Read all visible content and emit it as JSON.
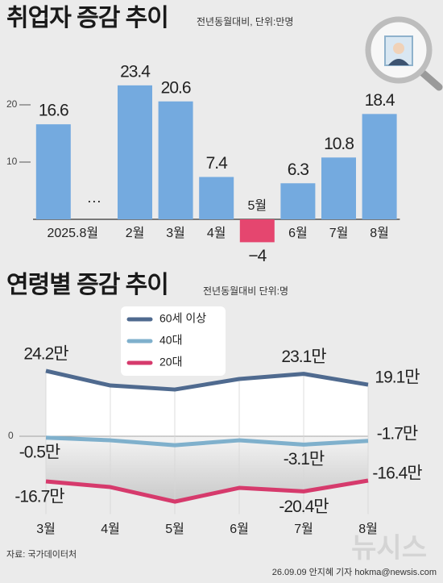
{
  "chart_data": [
    {
      "type": "bar",
      "title": "취업자 증감 추이",
      "subtitle": "전년동월대비, 단위:만명",
      "categories": [
        "2025.8월",
        null,
        "2월",
        "3월",
        "4월",
        "5월",
        "6월",
        "7월",
        "8월"
      ],
      "values": [
        16.6,
        null,
        23.4,
        20.6,
        7.4,
        -4,
        6.3,
        10.8,
        18.4
      ],
      "value_labels": [
        "16.6",
        null,
        "23.4",
        "20.6",
        "7.4",
        "−4",
        "6.3",
        "10.8",
        "18.4"
      ],
      "gap_marker": "···",
      "color": "#74aadf",
      "negative_color": "#e5466f",
      "ylim": [
        -5,
        30
      ],
      "yticks": [
        10,
        20
      ]
    },
    {
      "type": "line",
      "title": "연령별 증감 추이",
      "subtitle": "전년동월대비 단위:명",
      "categories": [
        "3월",
        "4월",
        "5월",
        "6월",
        "7월",
        "8월"
      ],
      "series": [
        {
          "name": "60세 이상",
          "color": "#4f6a8f",
          "values": [
            24.2,
            18.8,
            17.3,
            21.2,
            23.1,
            19.1
          ],
          "value_labels": [
            "24.2만",
            null,
            null,
            null,
            "23.1만",
            "19.1만"
          ]
        },
        {
          "name": "40대",
          "color": "#7fb0cc",
          "values": [
            -0.5,
            -1.5,
            -3.3,
            -1.5,
            -3.1,
            -1.7
          ],
          "value_labels": [
            "-0.5만",
            null,
            null,
            null,
            "-3.1만",
            "-1.7만"
          ]
        },
        {
          "name": "20대",
          "color": "#d63a6c",
          "values": [
            -16.7,
            -18.8,
            -24.2,
            -19.1,
            -20.4,
            -16.4
          ],
          "value_labels": [
            "-16.7만",
            null,
            null,
            null,
            "-20.4만",
            "-16.4만"
          ]
        }
      ],
      "ylim": [
        -27,
        42
      ],
      "yticks": [
        0
      ],
      "legend": "top-left"
    }
  ],
  "source": "자료: 국가데이터처",
  "credit": "26.09.09 안지혜 기자 hokma@newsis.com",
  "watermark": "뉴시스"
}
